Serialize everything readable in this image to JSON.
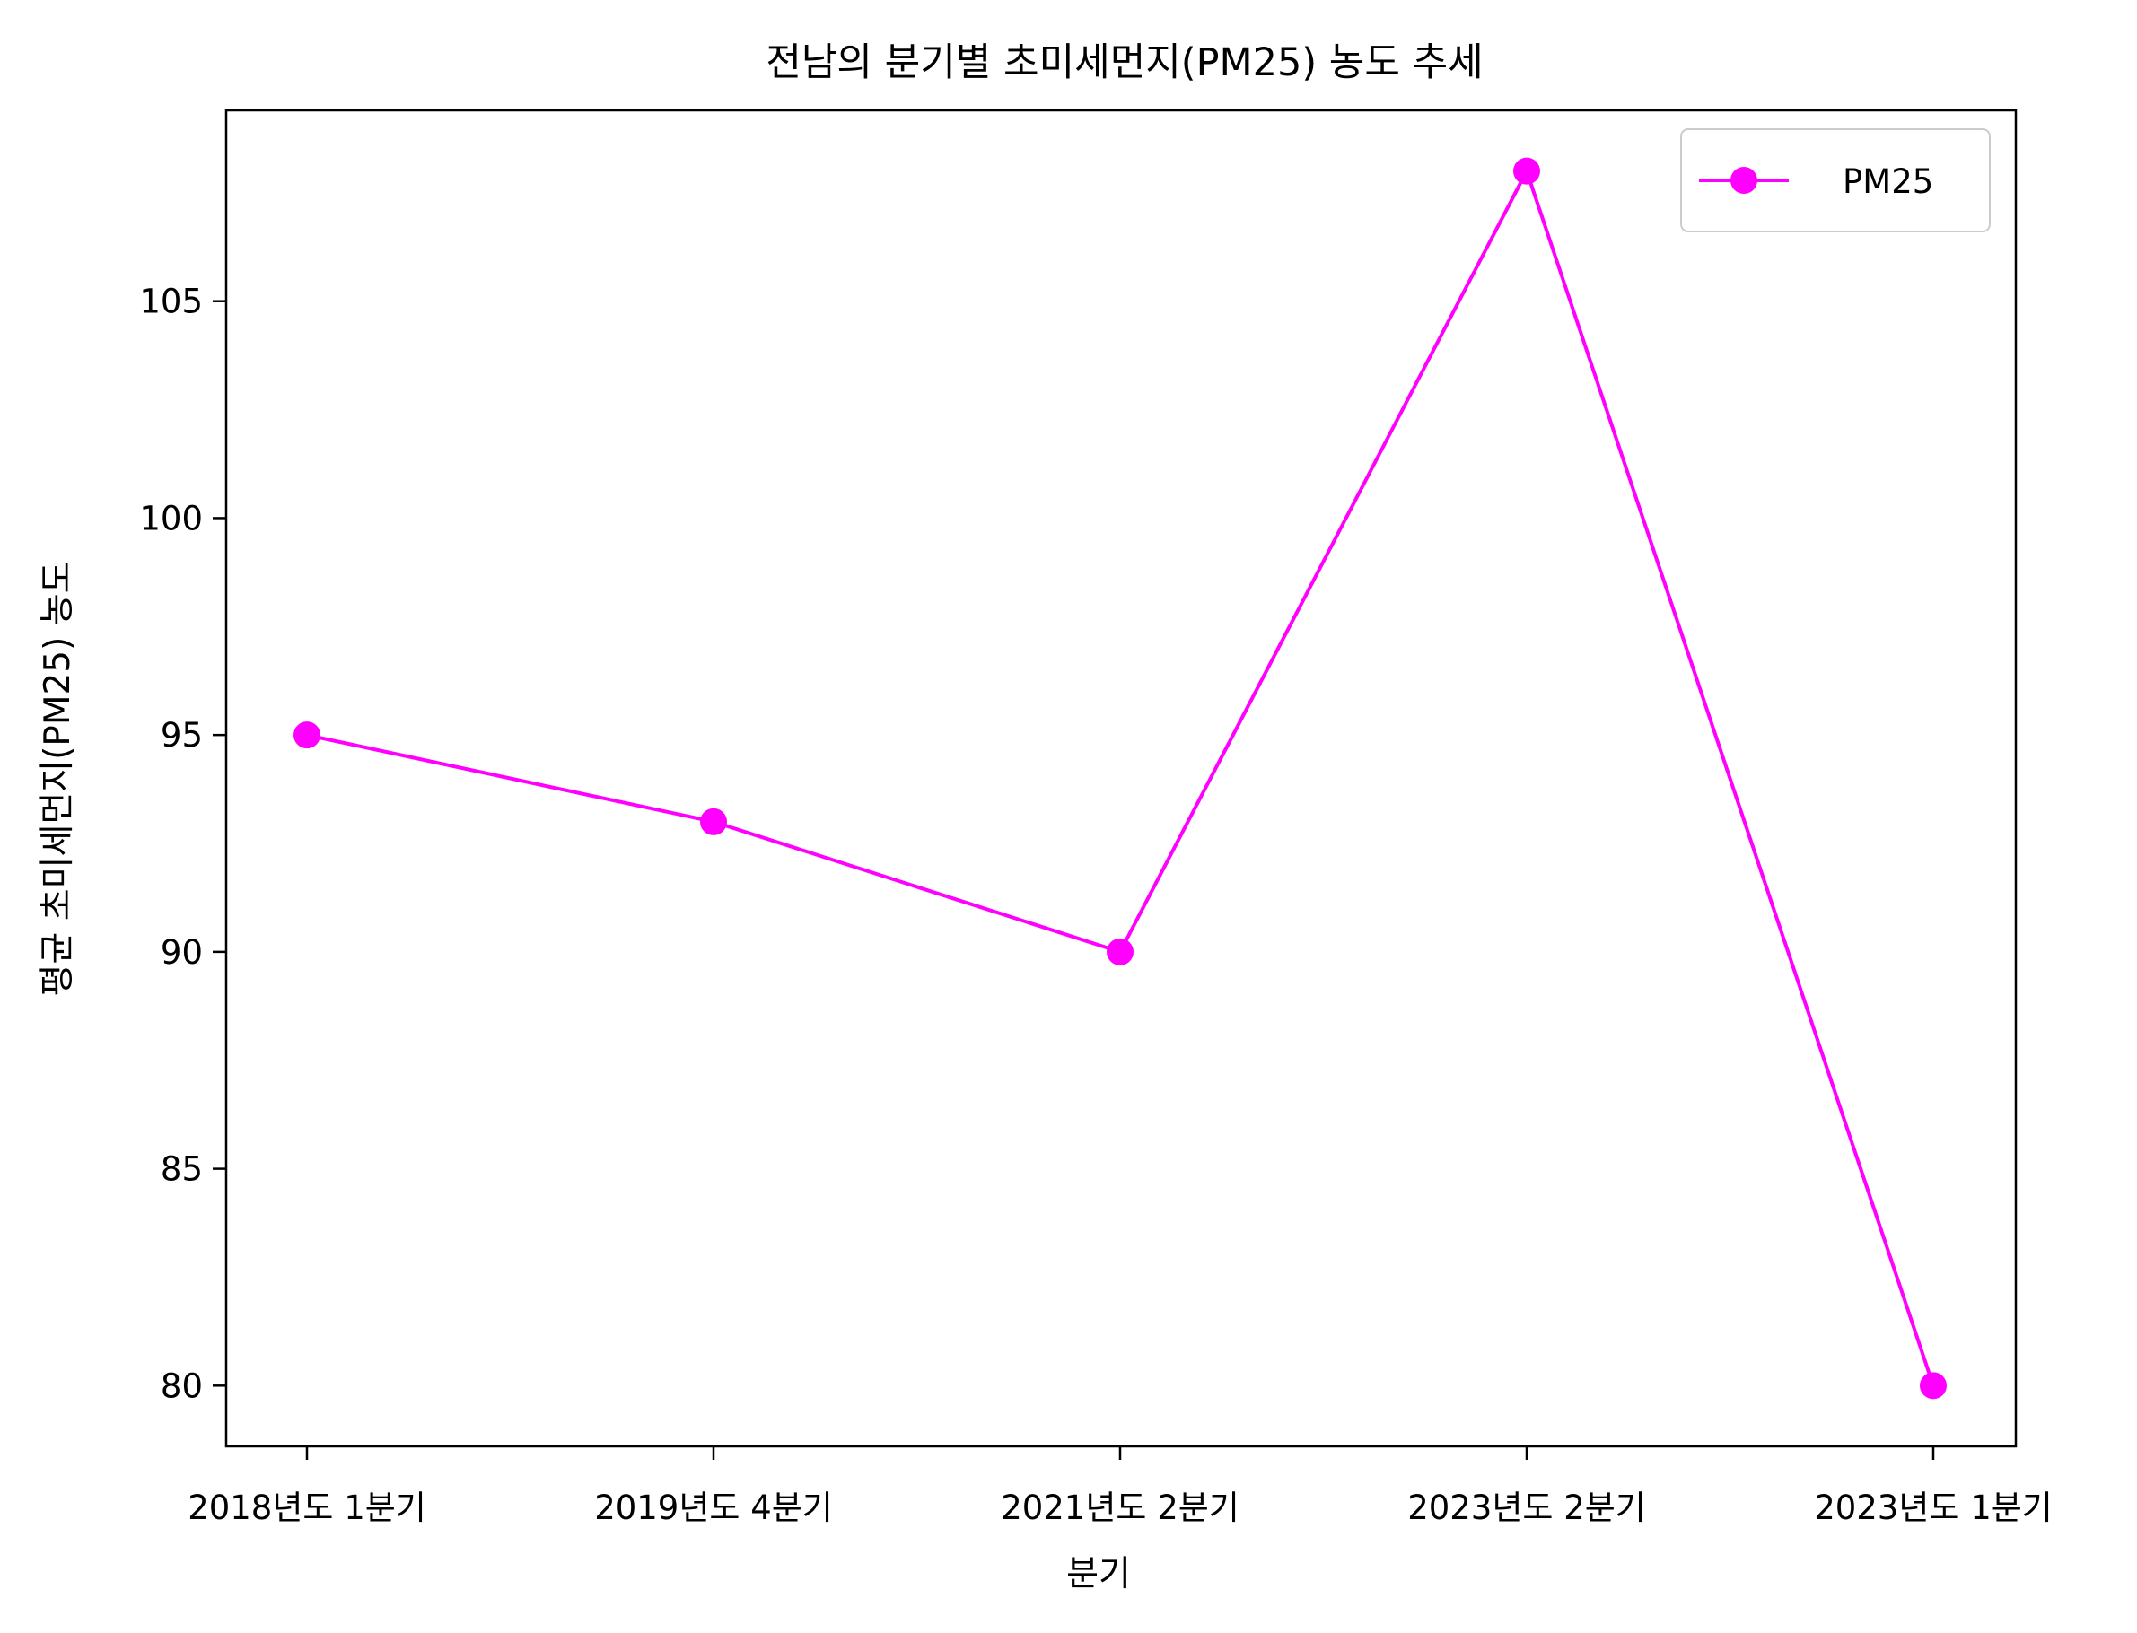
{
  "chart_data": {
    "type": "line",
    "title": "전남의 분기별 초미세먼지(PM25) 농도 추세",
    "xlabel": "분기",
    "ylabel": "평균 초미세먼지(PM25) 농도",
    "categories": [
      "2018년도 1분기",
      "2019년도 4분기",
      "2021년도 2분기",
      "2023년도 2분기",
      "2023년도 1분기"
    ],
    "series": [
      {
        "name": "PM25",
        "values": [
          95,
          93,
          90,
          108,
          80
        ],
        "color": "#ff00ff",
        "marker": "circle"
      }
    ],
    "yticks": [
      "80",
      "85",
      "90",
      "95",
      "100",
      "105"
    ],
    "ylim": [
      78.6,
      109.4
    ],
    "grid": false,
    "legend_position": "top-right"
  }
}
